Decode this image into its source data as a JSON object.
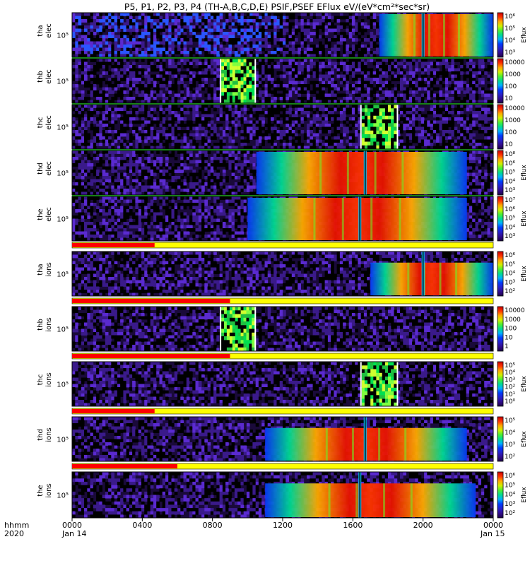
{
  "chart_data": {
    "type": "heatmap",
    "title": "P5, P1, P2, P3, P4 (TH-A,B,C,D,E) PSIF,PSEF EFlux eV/(eV*cm²*sec*sr)",
    "xaxis": {
      "row_label_1": "hhmm",
      "row_label_2": "2020",
      "ticks": [
        "0000",
        "0400",
        "0800",
        "1200",
        "1600",
        "2000",
        "0000"
      ],
      "tick_hours": [
        0,
        4,
        8,
        12,
        16,
        20,
        24
      ],
      "date_left": "Jan 14",
      "date_right": "Jan 15",
      "range_hours": [
        0,
        24
      ]
    },
    "panels": [
      {
        "id": "tha-elec",
        "label1": "tha",
        "label2": "elec",
        "y_tick": "10⁵",
        "cb_ticks": [
          "10⁶",
          "10⁵",
          "10⁴",
          "10³"
        ],
        "cb_label": "Eflux",
        "style": "sheath",
        "active": [
          17.5,
          24
        ],
        "dip": 20,
        "noise": [
          0,
          12
        ],
        "block": null,
        "bar": null
      },
      {
        "id": "thb-elec",
        "label1": "thb",
        "label2": "elec",
        "y_tick": "10⁵",
        "cb_ticks": [
          "10000",
          "1000",
          "100",
          "10"
        ],
        "cb_label": "",
        "style": "block",
        "active": null,
        "dip": null,
        "noise": null,
        "block": [
          8.5,
          10.4
        ],
        "bar": null
      },
      {
        "id": "thc-elec",
        "label1": "thc",
        "label2": "elec",
        "y_tick": "10⁵",
        "cb_ticks": [
          "10000",
          "1000",
          "100",
          "10"
        ],
        "cb_label": "",
        "style": "block",
        "active": null,
        "dip": null,
        "noise": null,
        "block": [
          16.5,
          18.5
        ],
        "bar": null
      },
      {
        "id": "thd-elec",
        "label1": "thd",
        "label2": "elec",
        "y_tick": "10⁵",
        "cb_ticks": [
          "10⁸",
          "10⁶",
          "10⁵",
          "10⁴",
          "10³"
        ],
        "cb_label": "Eflux",
        "style": "sheath",
        "active": [
          10.5,
          22.5
        ],
        "dip": 16.7,
        "noise": null,
        "block": null,
        "bar": null
      },
      {
        "id": "the-elec",
        "label1": "the",
        "label2": "elec",
        "y_tick": "10⁵",
        "cb_ticks": [
          "10⁷",
          "10⁶",
          "10⁵",
          "10⁴",
          "10³"
        ],
        "cb_label": "Eflux",
        "style": "sheath",
        "active": [
          10,
          22.5
        ],
        "dip": 16.4,
        "noise": null,
        "block": null,
        "bar": [
          0,
          4.7
        ]
      },
      {
        "id": "tha-ions",
        "label1": "tha",
        "label2": "ions",
        "y_tick": "10⁵",
        "cb_ticks": [
          "10⁶",
          "10⁵",
          "10⁴",
          "10³",
          "10²"
        ],
        "cb_label": "Eflux",
        "style": "ion",
        "active": [
          17,
          24
        ],
        "dip": 20,
        "noise": null,
        "block": null,
        "bar": [
          0,
          9
        ]
      },
      {
        "id": "thb-ions",
        "label1": "thb",
        "label2": "ions",
        "y_tick": "10⁵",
        "cb_ticks": [
          "10000",
          "1000",
          "100",
          "10",
          "1"
        ],
        "cb_label": "",
        "style": "block",
        "active": null,
        "dip": null,
        "noise": null,
        "block": [
          8.5,
          10.4
        ],
        "bar": [
          0,
          9
        ]
      },
      {
        "id": "thc-ions",
        "label1": "thc",
        "label2": "ions",
        "y_tick": "10⁵",
        "cb_ticks": [
          "10⁵",
          "10⁴",
          "10³",
          "10²",
          "10¹",
          "10⁰"
        ],
        "cb_label": "Eflux",
        "style": "block",
        "active": null,
        "dip": null,
        "noise": null,
        "block": [
          16.5,
          18.5
        ],
        "bar": [
          0,
          4.7
        ]
      },
      {
        "id": "thd-ions",
        "label1": "thd",
        "label2": "ions",
        "y_tick": "10⁵",
        "cb_ticks": [
          "10⁵",
          "10⁴",
          "10³",
          "10²"
        ],
        "cb_label": "Eflux",
        "style": "ion",
        "active": [
          11,
          22.5
        ],
        "dip": 16.7,
        "noise": null,
        "block": null,
        "bar": [
          0,
          6
        ]
      },
      {
        "id": "the-ions",
        "label1": "the",
        "label2": "ions",
        "y_tick": "10⁵",
        "cb_ticks": [
          "10⁶",
          "10⁵",
          "10⁴",
          "10³",
          "10²"
        ],
        "cb_label": "Eflux",
        "style": "ion",
        "active": [
          11,
          23
        ],
        "dip": 16.4,
        "noise": null,
        "block": null,
        "bar": null
      }
    ]
  }
}
